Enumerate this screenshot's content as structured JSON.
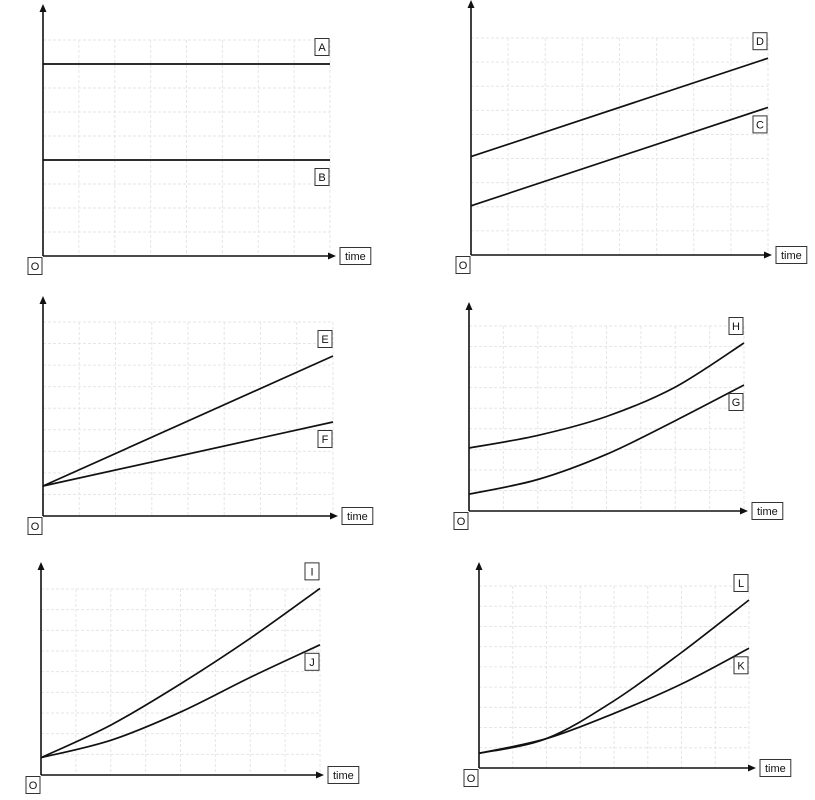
{
  "chart_data": [
    {
      "type": "line",
      "origin_label": "O",
      "xlabel": "time",
      "series": [
        {
          "name": "A",
          "x": [
            0,
            1
          ],
          "y": [
            0.8,
            0.8
          ]
        },
        {
          "name": "B",
          "x": [
            0,
            1
          ],
          "y": [
            0.4,
            0.4
          ]
        }
      ]
    },
    {
      "type": "line",
      "origin_label": "O",
      "xlabel": "time",
      "series": [
        {
          "name": "D",
          "x": [
            0,
            1
          ],
          "y": [
            0.4,
            0.8
          ]
        },
        {
          "name": "C",
          "x": [
            0,
            1
          ],
          "y": [
            0.2,
            0.6
          ]
        }
      ]
    },
    {
      "type": "line",
      "origin_label": "O",
      "xlabel": "time",
      "series": [
        {
          "name": "E",
          "x": [
            0,
            1
          ],
          "y": [
            0.15,
            0.8
          ]
        },
        {
          "name": "F",
          "x": [
            0,
            1
          ],
          "y": [
            0.15,
            0.47
          ]
        }
      ]
    },
    {
      "type": "line",
      "origin_label": "O",
      "xlabel": "time",
      "series": [
        {
          "name": "H",
          "x": [
            0,
            0.25,
            0.5,
            0.75,
            1
          ],
          "y": [
            0.3,
            0.36,
            0.45,
            0.59,
            0.8
          ]
        },
        {
          "name": "G",
          "x": [
            0,
            0.25,
            0.5,
            0.75,
            1
          ],
          "y": [
            0.08,
            0.15,
            0.27,
            0.43,
            0.6
          ]
        }
      ]
    },
    {
      "type": "line",
      "origin_label": "O",
      "xlabel": "time",
      "series": [
        {
          "name": "I",
          "x": [
            0,
            0.25,
            0.5,
            0.75,
            1
          ],
          "y": [
            0.08,
            0.23,
            0.42,
            0.63,
            0.86
          ]
        },
        {
          "name": "J",
          "x": [
            0,
            0.25,
            0.5,
            0.75,
            1
          ],
          "y": [
            0.08,
            0.16,
            0.29,
            0.45,
            0.6
          ]
        }
      ]
    },
    {
      "type": "line",
      "origin_label": "O",
      "xlabel": "time",
      "series": [
        {
          "name": "L",
          "x": [
            0,
            0.25,
            0.5,
            0.75,
            1
          ],
          "y": [
            0.07,
            0.14,
            0.32,
            0.55,
            0.8
          ]
        },
        {
          "name": "K",
          "x": [
            0,
            0.25,
            0.5,
            0.75,
            1
          ],
          "y": [
            0.07,
            0.14,
            0.26,
            0.4,
            0.57
          ]
        }
      ]
    }
  ]
}
